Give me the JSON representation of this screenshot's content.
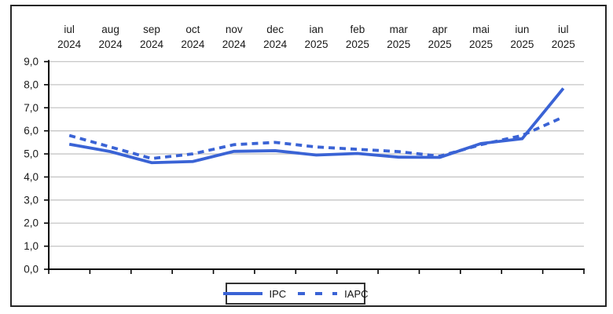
{
  "chart_data": {
    "type": "line",
    "categories": [
      "iul",
      "aug",
      "sep",
      "oct",
      "nov",
      "dec",
      "ian",
      "feb",
      "mar",
      "apr",
      "mai",
      "iun",
      "iul"
    ],
    "category_years": [
      "2024",
      "2024",
      "2024",
      "2024",
      "2024",
      "2024",
      "2025",
      "2025",
      "2025",
      "2025",
      "2025",
      "2025",
      "2025"
    ],
    "series": [
      {
        "name": "IAPC",
        "style": "dashed",
        "values": [
          5.8,
          5.3,
          4.8,
          5.0,
          5.4,
          5.5,
          5.3,
          5.2,
          5.1,
          4.9,
          5.4,
          5.8,
          6.6
        ]
      },
      {
        "name": "IPC",
        "style": "solid",
        "values": [
          5.42,
          5.1,
          4.62,
          4.67,
          5.11,
          5.14,
          4.95,
          5.02,
          4.86,
          4.85,
          5.45,
          5.66,
          7.84
        ]
      }
    ],
    "ylim": [
      0,
      9
    ],
    "ytick_step": 1,
    "ytick_labels": [
      "0,0",
      "1,0",
      "2,0",
      "3,0",
      "4,0",
      "5,0",
      "6,0",
      "7,0",
      "8,0",
      "9,0"
    ],
    "grid": true,
    "legend_position": "bottom-center",
    "colors": {
      "line": "#3A63D5",
      "grid": "#C6C6C6",
      "axis": "#000000",
      "text": "#1A1A1A",
      "frame": "#262626"
    }
  },
  "legend": {
    "items": [
      {
        "label": "IPC",
        "style": "solid"
      },
      {
        "label": "IAPC",
        "style": "dashed"
      }
    ]
  }
}
